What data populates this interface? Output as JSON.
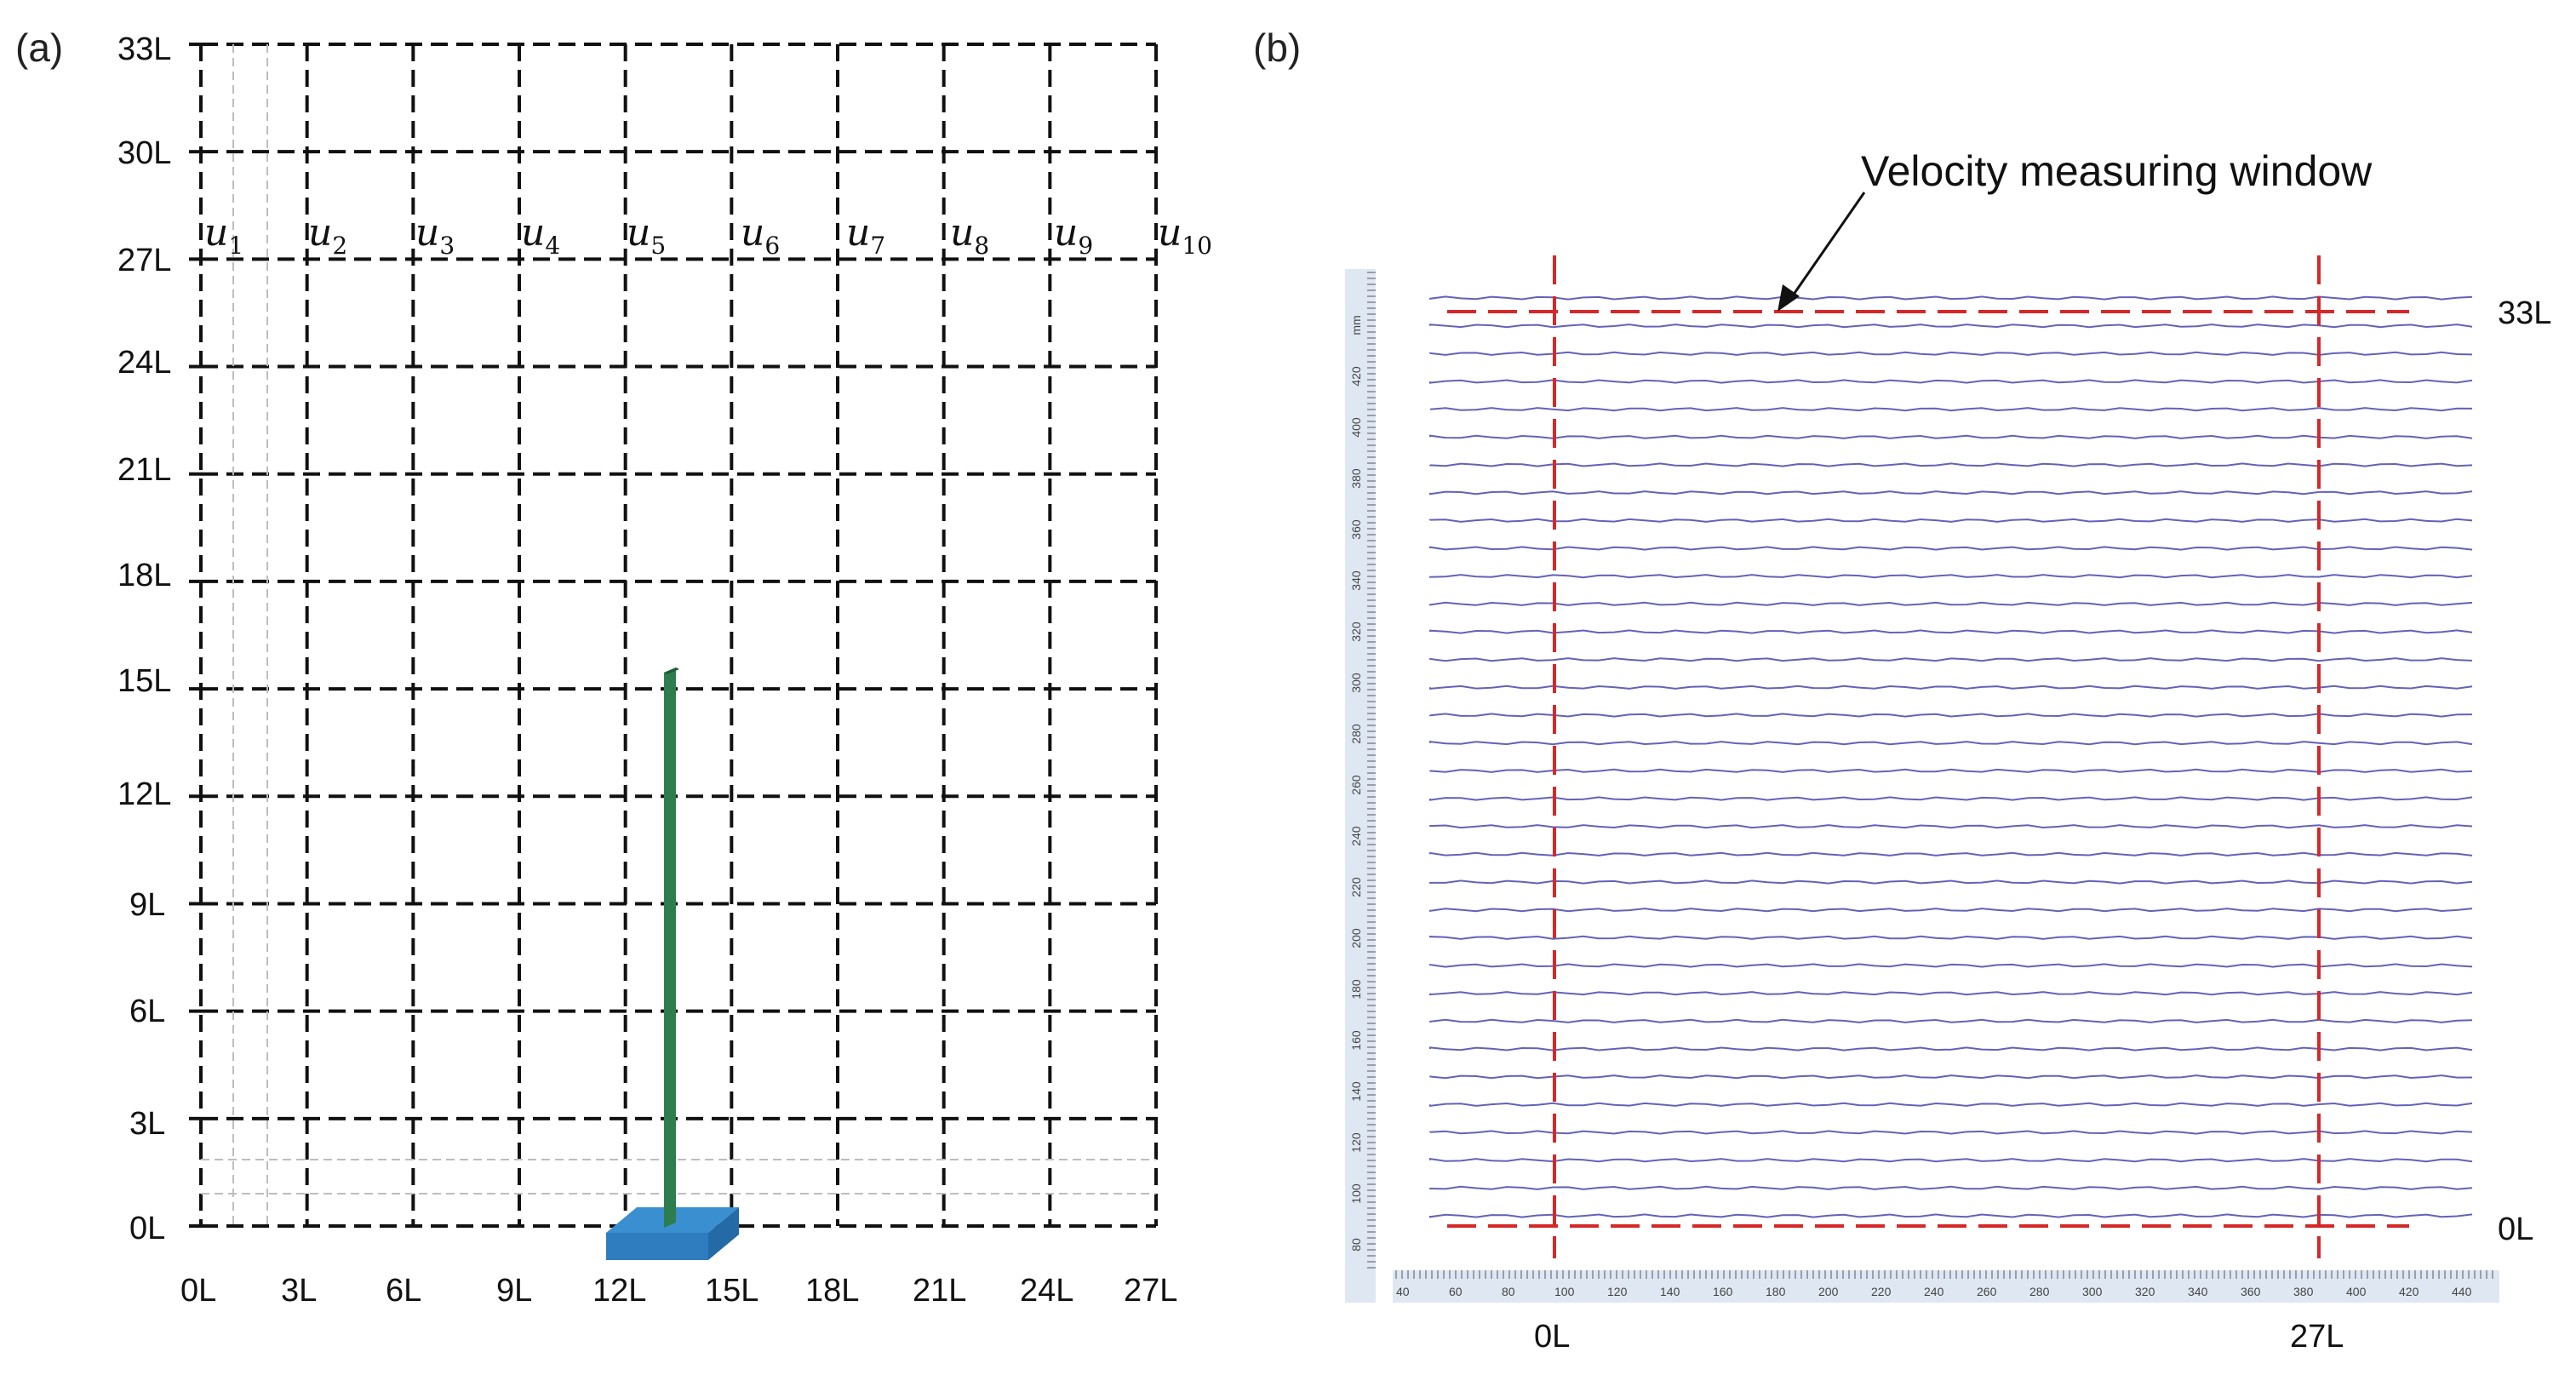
{
  "panel_a": {
    "label": "(a)",
    "y_labels": [
      "33L",
      "30L",
      "27L",
      "24L",
      "21L",
      "18L",
      "15L",
      "12L",
      "9L",
      "6L",
      "3L",
      "0L"
    ],
    "x_labels": [
      "0L",
      "3L",
      "6L",
      "9L",
      "12L",
      "15L",
      "18L",
      "21L",
      "24L",
      "27L"
    ],
    "velocity_probes": [
      {
        "base": "u",
        "sub": "1"
      },
      {
        "base": "u",
        "sub": "2"
      },
      {
        "base": "u",
        "sub": "3"
      },
      {
        "base": "u",
        "sub": "4"
      },
      {
        "base": "u",
        "sub": "5"
      },
      {
        "base": "u",
        "sub": "6"
      },
      {
        "base": "u",
        "sub": "7"
      },
      {
        "base": "u",
        "sub": "8"
      },
      {
        "base": "u",
        "sub": "9"
      },
      {
        "base": "u",
        "sub": "10"
      }
    ],
    "colors": {
      "grid": "#111111",
      "plate": "#2e7d4f",
      "base": "#3a8fd0",
      "guide": "#bdbdbd"
    }
  },
  "panel_b": {
    "label": "(b)",
    "annotation": "Velocity measuring window",
    "left_x_label": "0L",
    "right_x_label": "27L",
    "top_y_label": "33L",
    "bottom_y_label": "0L",
    "ruler_x_ticks": [
      "40",
      "60",
      "80",
      "100",
      "120",
      "140",
      "160",
      "180",
      "200",
      "220",
      "240",
      "260",
      "280",
      "300",
      "320",
      "340",
      "360",
      "380",
      "400",
      "420",
      "440"
    ],
    "ruler_y_ticks": [
      "80",
      "100",
      "120",
      "140",
      "160",
      "180",
      "200",
      "220",
      "240",
      "260",
      "280",
      "300",
      "320",
      "340",
      "360",
      "380",
      "400",
      "420",
      "mm"
    ],
    "colors": {
      "window": "#d62828",
      "vectors": "#3b3ba8",
      "ruler": "#dfe8f2"
    }
  }
}
